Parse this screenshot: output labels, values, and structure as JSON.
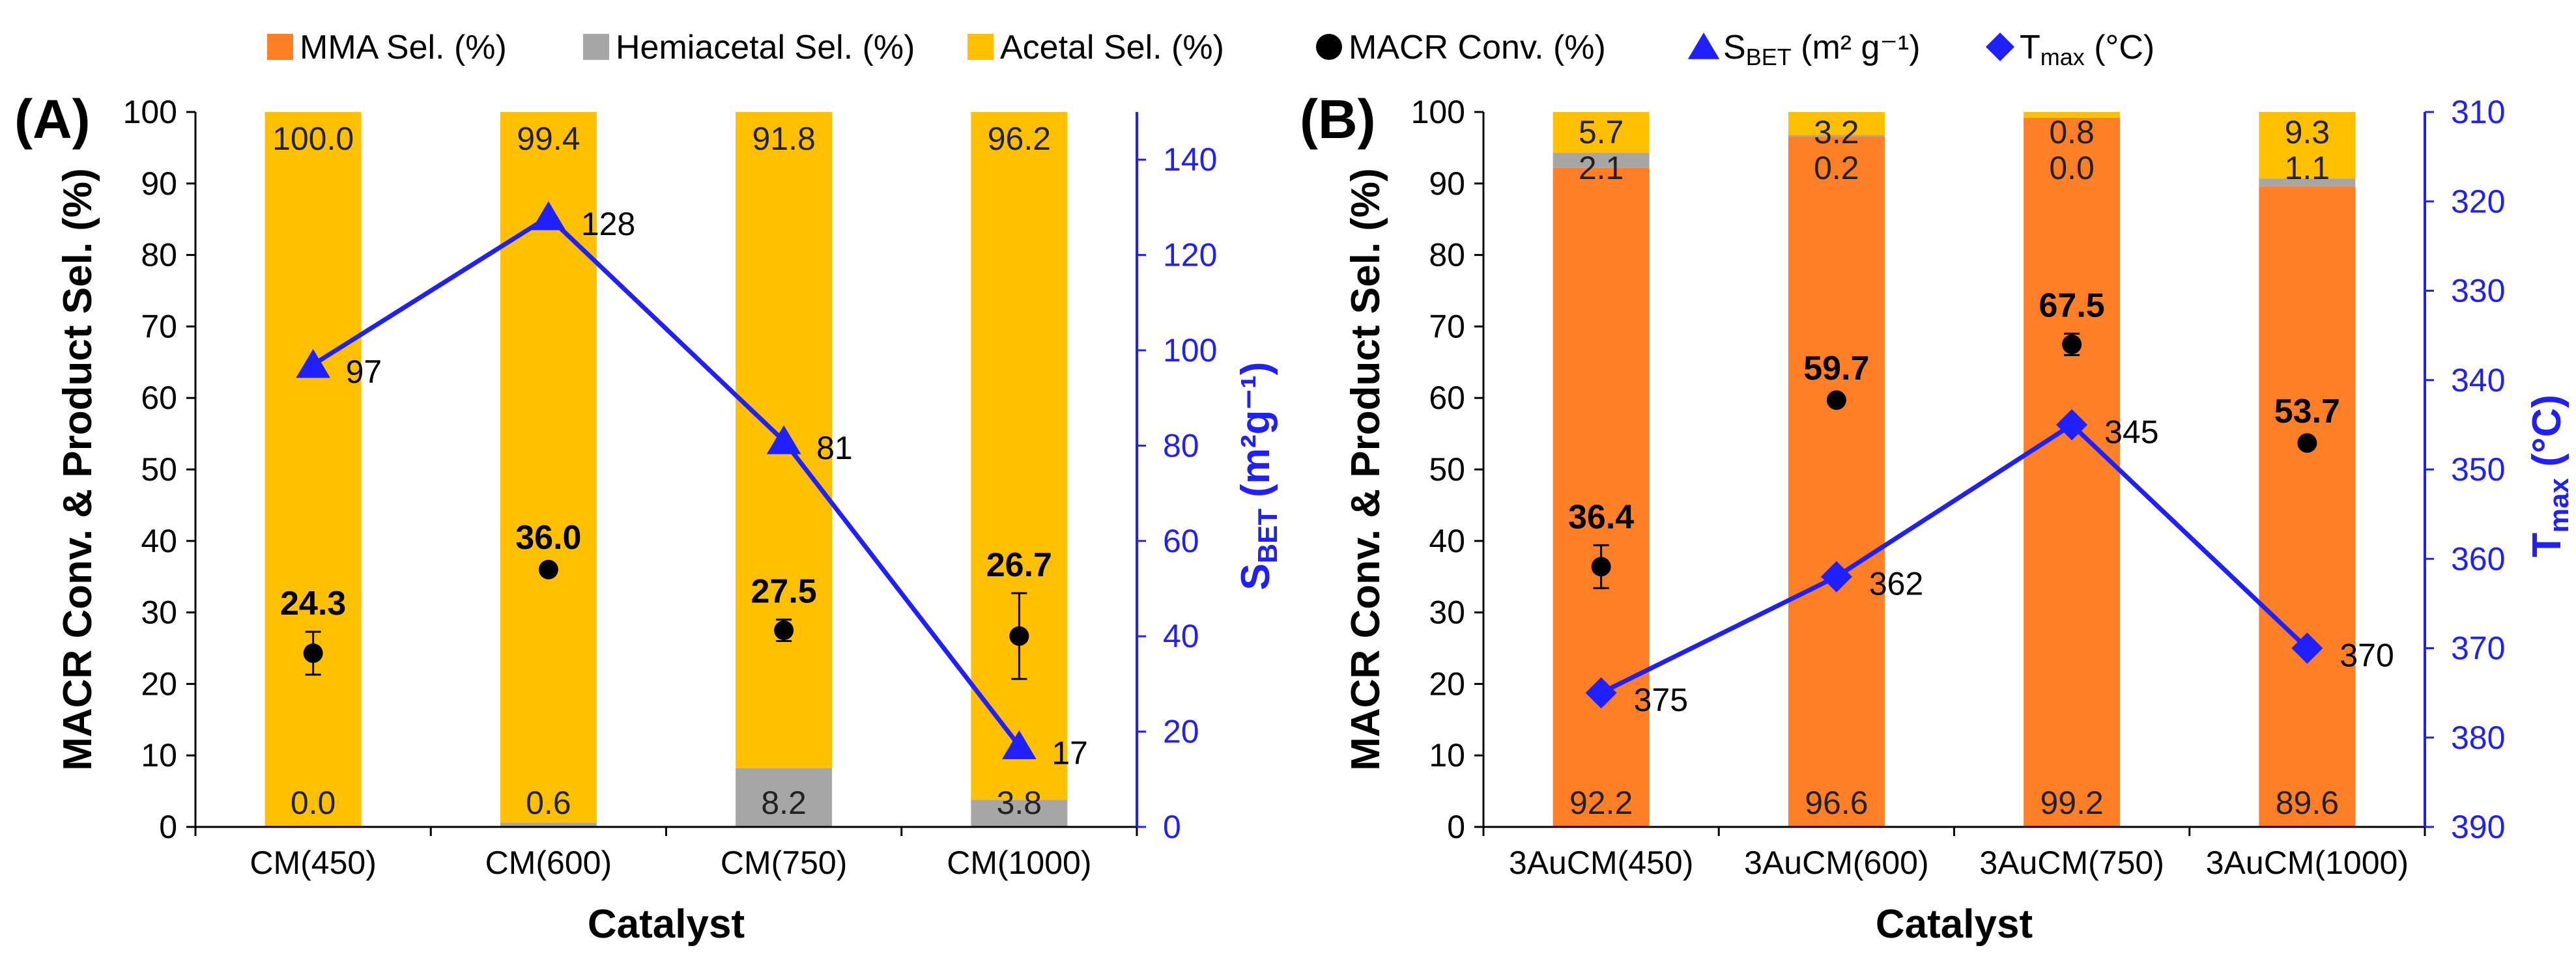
{
  "colors": {
    "mma": "#FF7F27",
    "hemiacetal": "#A6A6A6",
    "acetal": "#FFC000",
    "conversion": "#000000",
    "line": "#1F1FFF"
  },
  "legend": {
    "items": [
      {
        "key": "mma",
        "label": "MMA Sel. (%)",
        "marker": "square"
      },
      {
        "key": "hemiacetal",
        "label": "Hemiacetal Sel. (%)",
        "marker": "square"
      },
      {
        "key": "acetal",
        "label": "Acetal Sel. (%)",
        "marker": "square"
      },
      {
        "key": "conversion",
        "label": "MACR Conv. (%)",
        "marker": "circle"
      },
      {
        "key": "sbet",
        "label_main": "S",
        "label_sub": "BET",
        "label_rest": " (m² g⁻¹)",
        "marker": "triangle"
      },
      {
        "key": "tmax",
        "label_main": "T",
        "label_sub": "max",
        "label_rest": " (°C)",
        "marker": "diamond"
      }
    ]
  },
  "chart_data": [
    {
      "panel": "(A)",
      "type": "bar",
      "stacked": true,
      "xlabel": "Catalyst",
      "ylabel": "MACR Conv. & Product Sel. (%)",
      "ylim": [
        0,
        100
      ],
      "yticks": [
        "0",
        "10",
        "20",
        "30",
        "40",
        "50",
        "60",
        "70",
        "80",
        "90",
        "100"
      ],
      "categories": [
        "CM(450)",
        "CM(600)",
        "CM(750)",
        "CM(1000)"
      ],
      "series": [
        {
          "name": "MMA Sel. (%)",
          "key": "mma",
          "values": [
            0,
            0,
            0,
            0
          ]
        },
        {
          "name": "Hemiacetal Sel. (%)",
          "key": "hemiacetal",
          "values": [
            0.0,
            0.6,
            8.2,
            3.8
          ]
        },
        {
          "name": "Acetal Sel. (%)",
          "key": "acetal",
          "values": [
            100.0,
            99.4,
            91.8,
            96.2
          ]
        }
      ],
      "bottom_labels": [
        "0.0",
        "0.6",
        "8.2",
        "3.8"
      ],
      "top_labels": [
        "100.0",
        "99.4",
        "91.8",
        "96.2"
      ],
      "conversion": {
        "name": "MACR Conv. (%)",
        "values": [
          24.3,
          36.0,
          27.5,
          26.7
        ],
        "errors": [
          3.0,
          0.5,
          1.5,
          6.0
        ],
        "labels": [
          "24.3",
          "36.0",
          "27.5",
          "26.7"
        ]
      },
      "line_series": {
        "name": "SBET (m² g⁻¹)",
        "marker": "triangle",
        "values": [
          97,
          128,
          81,
          17
        ],
        "labels": [
          "97",
          "128",
          "81",
          "17"
        ],
        "axis": "right",
        "ylim": [
          0,
          150
        ],
        "inverted": false,
        "yticks": [
          "0",
          "20",
          "40",
          "60",
          "80",
          "100",
          "120",
          "140"
        ],
        "ylabel_main": "S",
        "ylabel_sub": "BET",
        "ylabel_rest": " (m²g⁻¹)"
      }
    },
    {
      "panel": "(B)",
      "type": "bar",
      "stacked": true,
      "xlabel": "Catalyst",
      "ylabel": "MACR Conv. & Product Sel. (%)",
      "ylim": [
        0,
        100
      ],
      "yticks": [
        "0",
        "10",
        "20",
        "30",
        "40",
        "50",
        "60",
        "70",
        "80",
        "90",
        "100"
      ],
      "categories": [
        "3AuCM(450)",
        "3AuCM(600)",
        "3AuCM(750)",
        "3AuCM(1000)"
      ],
      "series": [
        {
          "name": "MMA Sel. (%)",
          "key": "mma",
          "values": [
            92.2,
            96.6,
            99.2,
            89.6
          ]
        },
        {
          "name": "Hemiacetal Sel. (%)",
          "key": "hemiacetal",
          "values": [
            2.1,
            0.2,
            0.0,
            1.1
          ]
        },
        {
          "name": "Acetal Sel. (%)",
          "key": "acetal",
          "values": [
            5.7,
            3.2,
            0.8,
            9.3
          ]
        }
      ],
      "bottom_labels": [
        "92.2",
        "96.6",
        "99.2",
        "89.6"
      ],
      "mid_labels": [
        "2.1",
        "0.2",
        "0.0",
        "1.1"
      ],
      "top_labels": [
        "5.7",
        "3.2",
        "0.8",
        "9.3"
      ],
      "conversion": {
        "name": "MACR Conv. (%)",
        "values": [
          36.4,
          59.7,
          67.5,
          53.7
        ],
        "errors": [
          3.0,
          0.5,
          1.5,
          0.5
        ],
        "labels": [
          "36.4",
          "59.7",
          "67.5",
          "53.7"
        ]
      },
      "line_series": {
        "name": "Tmax (°C)",
        "marker": "diamond",
        "values": [
          375,
          362,
          345,
          370
        ],
        "labels": [
          "375",
          "362",
          "345",
          "370"
        ],
        "axis": "right",
        "ylim": [
          310,
          390
        ],
        "inverted": true,
        "yticks": [
          "310",
          "320",
          "330",
          "340",
          "350",
          "360",
          "370",
          "380",
          "390"
        ],
        "ylabel_main": "T",
        "ylabel_sub": "max",
        "ylabel_rest": " (°C)"
      }
    }
  ]
}
